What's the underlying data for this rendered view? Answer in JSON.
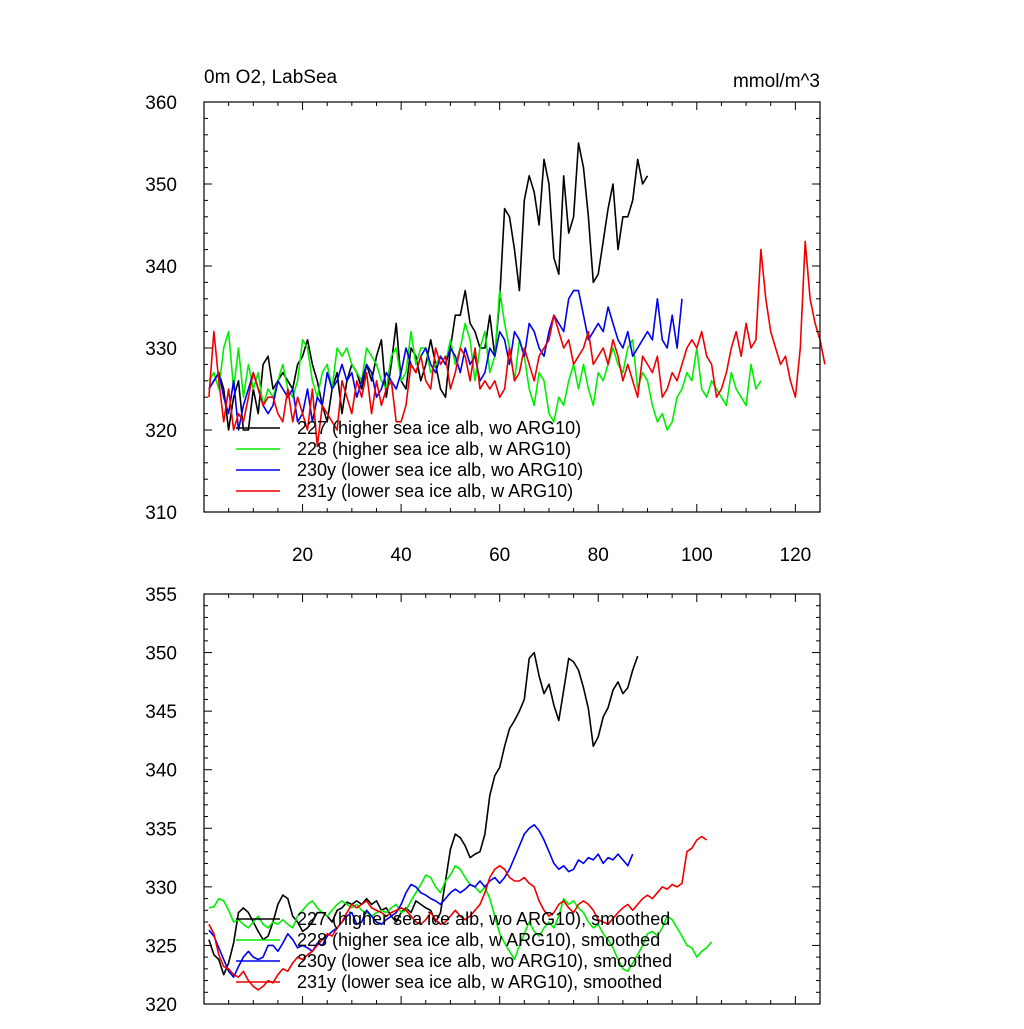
{
  "chart_data": [
    {
      "type": "line",
      "title_left": "0m O2, LabSea",
      "title_right": "mmol/m^3",
      "xlim": [
        0,
        125
      ],
      "ylim": [
        310,
        360
      ],
      "y_ticks": [
        310,
        320,
        330,
        340,
        350,
        360
      ],
      "x_ticks": [
        20,
        40,
        60,
        80,
        100,
        120
      ],
      "x_tick_labels": [
        "20",
        "40",
        "60",
        "80",
        "100",
        "120"
      ],
      "legend_placement": "lower-left",
      "series": [
        {
          "name": "227 (higher sea ice alb, wo ARG10)",
          "color": "#000000",
          "x_start": 1,
          "values": [
            325,
            326,
            327,
            325,
            320,
            324,
            326,
            320,
            320,
            325,
            322,
            328,
            329,
            325,
            326,
            327,
            326,
            325,
            328,
            329,
            331,
            328,
            326,
            323,
            321,
            325,
            327,
            322,
            326,
            328,
            327,
            325,
            328,
            326,
            329,
            331,
            324,
            328,
            333,
            326,
            325,
            330,
            329,
            326,
            328,
            331,
            328,
            325,
            324,
            330,
            334,
            334,
            337,
            333,
            332,
            330,
            330,
            334,
            329,
            336,
            347,
            346,
            342,
            337,
            348,
            351,
            349,
            345,
            353,
            350,
            341,
            339,
            351,
            344,
            346,
            355,
            352,
            346,
            338,
            339,
            343,
            347,
            350,
            342,
            346,
            346,
            348,
            353,
            350,
            351
          ]
        },
        {
          "name": "228 (higher sea ice alb, w ARG10)",
          "color": "#00ee00",
          "x_start": 1,
          "values": [
            326,
            327,
            325,
            330,
            332,
            325,
            330,
            324,
            328,
            325,
            327,
            323,
            325,
            324,
            326,
            328,
            325,
            324,
            326,
            331,
            330,
            326,
            324,
            327,
            328,
            325,
            330,
            329,
            330,
            328,
            327,
            326,
            330,
            329,
            328,
            326,
            325,
            329,
            330,
            326,
            327,
            332,
            328,
            330,
            330,
            327,
            328,
            329,
            328,
            331,
            328,
            330,
            333,
            331,
            326,
            330,
            332,
            327,
            329,
            337,
            333,
            330,
            326,
            331,
            329,
            325,
            323,
            327,
            326,
            322,
            321,
            324,
            323,
            326,
            328,
            325,
            328,
            325,
            323,
            327,
            326,
            328,
            330,
            328,
            327,
            330,
            331,
            325,
            327,
            326,
            323,
            321,
            322,
            320,
            321,
            324,
            325,
            327,
            326,
            330,
            325,
            324,
            326,
            325,
            324,
            323,
            327,
            325,
            324,
            323,
            328,
            325,
            326
          ]
        },
        {
          "name": "230y (lower sea ice alb, wo ARG10)",
          "color": "#0000ee",
          "x_start": 1,
          "values": [
            325,
            326,
            327,
            324,
            322,
            326,
            320,
            323,
            325,
            327,
            325,
            323,
            322,
            323,
            326,
            325,
            324,
            325,
            321,
            322,
            325,
            321,
            324,
            323,
            327,
            325,
            326,
            328,
            326,
            327,
            324,
            326,
            328,
            327,
            324,
            325,
            327,
            326,
            325,
            327,
            330,
            328,
            327,
            329,
            330,
            328,
            327,
            329,
            328,
            330,
            329,
            327,
            330,
            328,
            329,
            326,
            327,
            330,
            329,
            332,
            331,
            328,
            332,
            331,
            329,
            333,
            332,
            330,
            329,
            332,
            334,
            333,
            332,
            336,
            337,
            337,
            334,
            331,
            332,
            333,
            332,
            335,
            333,
            331,
            330,
            332,
            329,
            330,
            331,
            332,
            331,
            336,
            331,
            330,
            334,
            330,
            336
          ]
        },
        {
          "name": "231y (lower sea ice alb, w ARG10)",
          "color": "#ee0000",
          "x_start": 1,
          "values": [
            324,
            332,
            326,
            321,
            325,
            320,
            322,
            321,
            324,
            327,
            325,
            323,
            324,
            324,
            322,
            321,
            325,
            321,
            324,
            322,
            320,
            325,
            318,
            323,
            322,
            321,
            320,
            326,
            324,
            322,
            326,
            324,
            327,
            322,
            326,
            323,
            325,
            326,
            321,
            321,
            323,
            328,
            327,
            329,
            326,
            325,
            330,
            328,
            329,
            325,
            327,
            330,
            329,
            326,
            330,
            325,
            326,
            325,
            326,
            324,
            325,
            330,
            326,
            327,
            330,
            328,
            326,
            329,
            330,
            331,
            334,
            332,
            330,
            331,
            328,
            329,
            330,
            332,
            328,
            329,
            330,
            328,
            331,
            329,
            326,
            328,
            326,
            324,
            329,
            328,
            327,
            329,
            324,
            325,
            327,
            326,
            328,
            330,
            331,
            330,
            332,
            329,
            328,
            324,
            325,
            327,
            330,
            332,
            329,
            333,
            330,
            331,
            342,
            336,
            332,
            330,
            328,
            329,
            326,
            324,
            330,
            343,
            336,
            333,
            331,
            328
          ]
        }
      ],
      "legend": [
        "227 (higher sea ice alb, wo ARG10)",
        "228 (higher sea ice alb, w ARG10)",
        "230y (lower sea ice alb, wo ARG10)",
        "231y (lower sea ice alb, w ARG10)"
      ]
    },
    {
      "type": "line",
      "xlim": [
        0,
        125
      ],
      "ylim": [
        320,
        355
      ],
      "y_ticks": [
        320,
        325,
        330,
        335,
        340,
        345,
        350,
        355
      ],
      "x_ticks": [
        20,
        40,
        60,
        80,
        100,
        120
      ],
      "legend_placement": "lower-left",
      "series": [
        {
          "name": "227 (higher sea ice alb, wo ARG10), smoothed",
          "color": "#000000",
          "x_start": 1,
          "values": [
            325.5,
            324.2,
            323.8,
            322.5,
            323.5,
            325.2,
            327.8,
            328.2,
            327.8,
            327.0,
            326.2,
            325.5,
            325.8,
            327.0,
            328.5,
            329.3,
            329.0,
            327.5,
            327.0,
            326.2,
            326.5,
            327.0,
            327.8,
            327.8,
            327.5,
            327.0,
            328.0,
            328.2,
            328.7,
            328.5,
            328.8,
            328.5,
            329.0,
            328.5,
            328.8,
            328.0,
            328.2,
            327.5,
            327.0,
            327.8,
            328.2,
            327.8,
            328.8,
            328.5,
            328.2,
            328.0,
            327.0,
            327.8,
            330.5,
            333.2,
            334.5,
            334.2,
            333.5,
            332.5,
            332.8,
            333.0,
            334.5,
            337.8,
            339.5,
            340.2,
            342.0,
            343.5,
            344.2,
            345.0,
            346.0,
            349.5,
            350.0,
            348.0,
            346.5,
            347.3,
            345.5,
            344.2,
            346.8,
            349.5,
            349.2,
            348.5,
            347.0,
            345.2,
            342.0,
            342.8,
            344.5,
            345.3,
            346.8,
            347.5,
            346.5,
            347.0,
            348.5,
            349.7
          ]
        },
        {
          "name": "228 (higher sea ice alb, w ARG10), smoothed",
          "color": "#00ee00",
          "x_start": 1,
          "values": [
            328.2,
            328.3,
            329.0,
            328.8,
            328.0,
            327.0,
            327.2,
            326.8,
            326.5,
            327.0,
            327.5,
            326.8,
            326.5,
            327.0,
            326.8,
            327.2,
            326.8,
            326.5,
            327.5,
            328.0,
            328.5,
            328.8,
            328.2,
            327.8,
            327.5,
            328.0,
            328.5,
            328.8,
            328.5,
            328.2,
            328.5,
            328.0,
            327.8,
            327.5,
            327.8,
            328.0,
            327.8,
            328.2,
            328.5,
            327.8,
            328.0,
            328.8,
            329.5,
            330.2,
            331.0,
            330.8,
            330.0,
            329.5,
            330.5,
            331.0,
            331.8,
            331.5,
            330.8,
            330.2,
            330.0,
            329.5,
            330.0,
            329.0,
            327.5,
            326.0,
            325.2,
            324.5,
            323.8,
            325.0,
            326.0,
            327.0,
            326.2,
            325.8,
            326.5,
            327.0,
            326.5,
            327.5,
            329.0,
            328.5,
            328.8,
            328.2,
            327.8,
            327.0,
            326.5,
            326.8,
            326.0,
            325.5,
            324.8,
            323.8,
            323.0,
            322.8,
            323.5,
            324.2,
            325.0,
            326.0,
            326.2,
            325.8,
            326.5,
            327.5,
            327.2,
            326.5,
            325.8,
            325.0,
            324.8,
            324.0,
            324.5,
            324.8,
            325.3
          ]
        },
        {
          "name": "230y (lower sea ice alb, wo ARG10), smoothed",
          "color": "#0000ee",
          "x_start": 1,
          "values": [
            326.3,
            325.8,
            324.8,
            323.8,
            322.8,
            322.3,
            323.2,
            324.0,
            324.5,
            324.0,
            323.8,
            324.0,
            325.0,
            325.0,
            324.5,
            325.2,
            326.0,
            325.5,
            324.8,
            325.0,
            324.8,
            324.5,
            325.2,
            325.0,
            325.8,
            326.2,
            326.5,
            327.0,
            327.5,
            327.8,
            326.8,
            327.0,
            328.0,
            327.5,
            327.0,
            326.8,
            327.2,
            327.5,
            327.8,
            328.5,
            329.5,
            330.2,
            330.0,
            329.5,
            329.3,
            329.0,
            328.8,
            328.5,
            329.0,
            329.5,
            329.8,
            329.5,
            329.8,
            330.2,
            330.0,
            330.5,
            330.0,
            330.5,
            330.8,
            330.3,
            330.8,
            331.5,
            332.5,
            333.5,
            334.5,
            335.0,
            335.3,
            334.8,
            334.0,
            333.0,
            332.0,
            331.5,
            331.8,
            331.3,
            331.5,
            332.3,
            332.0,
            332.5,
            332.3,
            332.8,
            332.0,
            332.5,
            332.3,
            332.8,
            332.3,
            331.8,
            332.8
          ]
        },
        {
          "name": "231y (lower sea ice alb, w ARG10), smoothed",
          "color": "#ee0000",
          "x_start": 1,
          "values": [
            326.8,
            326.0,
            324.2,
            323.2,
            323.0,
            322.5,
            322.3,
            322.8,
            322.0,
            321.5,
            321.2,
            321.5,
            322.0,
            321.8,
            322.5,
            323.0,
            322.8,
            323.5,
            324.0,
            323.8,
            324.2,
            324.5,
            325.0,
            325.5,
            326.0,
            325.8,
            326.5,
            327.0,
            327.8,
            328.5,
            328.2,
            328.5,
            328.8,
            328.2,
            328.0,
            327.8,
            327.5,
            327.8,
            328.0,
            328.2,
            328.0,
            327.5,
            327.0,
            326.8,
            327.2,
            327.8,
            327.2,
            326.8,
            327.0,
            327.5,
            328.0,
            327.5,
            327.2,
            327.5,
            328.0,
            328.5,
            329.5,
            330.8,
            331.5,
            331.8,
            331.5,
            330.8,
            330.5,
            330.5,
            330.8,
            330.3,
            330.0,
            328.8,
            328.0,
            327.5,
            327.8,
            328.5,
            328.8,
            328.2,
            327.8,
            328.5,
            328.8,
            328.5,
            328.0,
            327.2,
            327.0,
            326.8,
            327.3,
            327.8,
            328.2,
            328.5,
            328.0,
            328.5,
            329.0,
            329.3,
            329.0,
            329.5,
            330.0,
            329.8,
            330.2,
            330.0,
            330.3,
            333.0,
            333.3,
            334.0,
            334.3,
            334.0
          ]
        }
      ],
      "legend": [
        "227 (higher sea ice alb, wo ARG10), smoothed",
        "228 (higher sea ice alb, w ARG10), smoothed",
        "230y (lower sea ice alb, wo ARG10), smoothed",
        "231y (lower sea ice alb, w ARG10), smoothed"
      ]
    }
  ]
}
